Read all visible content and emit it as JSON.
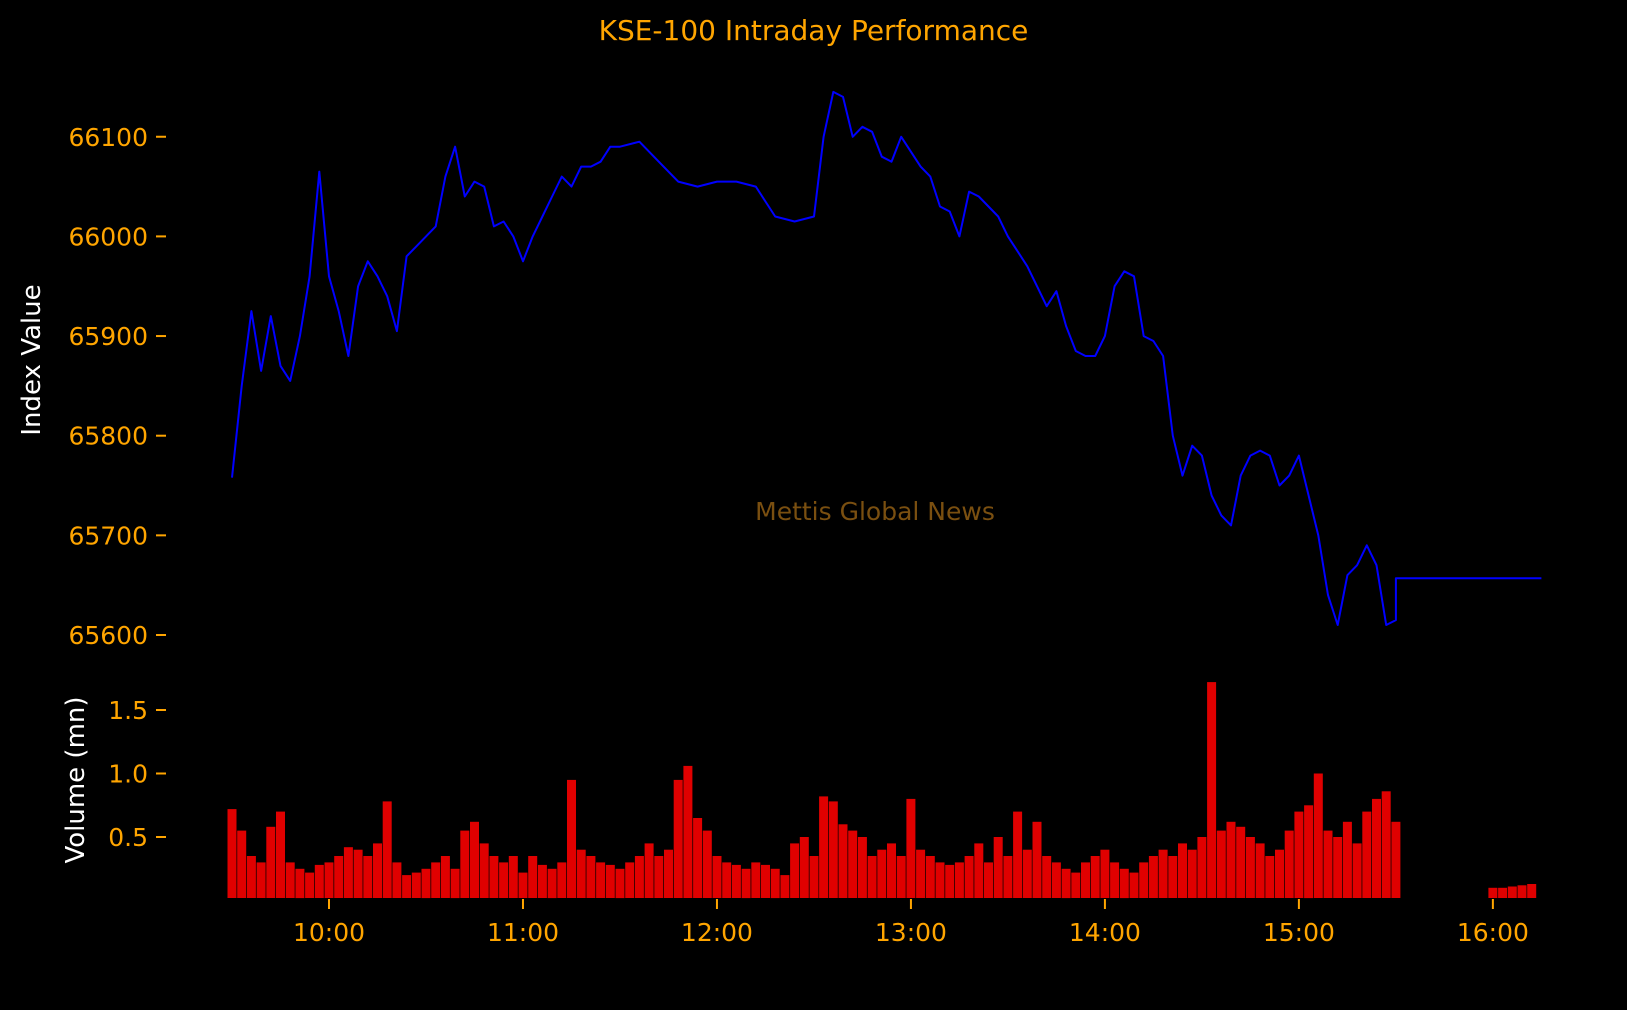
{
  "chart_data": [
    {
      "type": "line",
      "title": "KSE-100 Intraday Performance",
      "watermark": "Mettis Global News",
      "xlabel": "",
      "ylabel": "Index Value",
      "ylim": [
        65580,
        66160
      ],
      "yticks": [
        65600,
        65700,
        65800,
        65900,
        66000,
        66100
      ],
      "xticks": [
        "10:00",
        "11:00",
        "12:00",
        "13:00",
        "14:00",
        "15:00",
        "16:00"
      ],
      "grid": false,
      "line_color": "#0000ff",
      "axis_text_color": "#ffa500",
      "label_color": "#ffffff",
      "background": "#000000",
      "series": [
        {
          "x": [
            "09:30",
            "09:33",
            "09:36",
            "09:39",
            "09:42",
            "09:45",
            "09:48",
            "09:51",
            "09:54",
            "09:57",
            "10:00",
            "10:03",
            "10:06",
            "10:09",
            "10:12",
            "10:15",
            "10:18",
            "10:21",
            "10:24",
            "10:27",
            "10:30",
            "10:33",
            "10:36",
            "10:39",
            "10:42",
            "10:45",
            "10:48",
            "10:51",
            "10:54",
            "10:57",
            "11:00",
            "11:03",
            "11:06",
            "11:09",
            "11:12",
            "11:15",
            "11:18",
            "11:21",
            "11:24",
            "11:27",
            "11:30",
            "11:36",
            "11:42",
            "11:48",
            "11:54",
            "12:00",
            "12:06",
            "12:12",
            "12:18",
            "12:24",
            "12:30",
            "12:33",
            "12:36",
            "12:39",
            "12:42",
            "12:45",
            "12:48",
            "12:51",
            "12:54",
            "12:57",
            "13:00",
            "13:03",
            "13:06",
            "13:09",
            "13:12",
            "13:15",
            "13:18",
            "13:21",
            "13:24",
            "13:27",
            "13:30",
            "13:33",
            "13:36",
            "13:39",
            "13:42",
            "13:45",
            "13:48",
            "13:51",
            "13:54",
            "13:57",
            "14:00",
            "14:03",
            "14:06",
            "14:09",
            "14:12",
            "14:15",
            "14:18",
            "14:21",
            "14:24",
            "14:27",
            "14:30",
            "14:33",
            "14:36",
            "14:39",
            "14:42",
            "14:45",
            "14:48",
            "14:51",
            "14:54",
            "14:57",
            "15:00",
            "15:03",
            "15:06",
            "15:09",
            "15:12",
            "15:15",
            "15:18",
            "15:21",
            "15:24",
            "15:27",
            "15:30",
            "15:30",
            "16:15"
          ],
          "values": [
            65758,
            65850,
            65925,
            65865,
            65920,
            65870,
            65855,
            65900,
            65960,
            66065,
            65960,
            65925,
            65880,
            65950,
            65975,
            65960,
            65940,
            65905,
            65980,
            65990,
            66000,
            66010,
            66060,
            66090,
            66040,
            66055,
            66050,
            66010,
            66015,
            66000,
            65975,
            66000,
            66020,
            66040,
            66060,
            66050,
            66070,
            66070,
            66075,
            66090,
            66090,
            66095,
            66075,
            66055,
            66050,
            66055,
            66055,
            66050,
            66020,
            66015,
            66020,
            66100,
            66145,
            66140,
            66100,
            66110,
            66105,
            66080,
            66075,
            66100,
            66085,
            66070,
            66060,
            66030,
            66025,
            66000,
            66045,
            66040,
            66030,
            66020,
            66000,
            65985,
            65970,
            65950,
            65930,
            65945,
            65910,
            65885,
            65880,
            65880,
            65900,
            65950,
            65965,
            65960,
            65900,
            65895,
            65880,
            65800,
            65760,
            65790,
            65780,
            65740,
            65720,
            65710,
            65760,
            65780,
            65785,
            65780,
            65750,
            65760,
            65780,
            65740,
            65700,
            65640,
            65610,
            65660,
            65670,
            65690,
            65670,
            65610,
            65615,
            65657,
            65657
          ]
        }
      ]
    },
    {
      "type": "bar",
      "title": "",
      "xlabel": "",
      "ylabel": "Volume (mn)",
      "ylim": [
        0.1,
        1.75
      ],
      "yticks": [
        0.5,
        1.0,
        1.5
      ],
      "ytick_labels": [
        "0.5",
        "1.0",
        "1.5"
      ],
      "grid": false,
      "bar_color": "#e00000",
      "series": [
        {
          "x": [
            "09:30",
            "09:33",
            "09:36",
            "09:39",
            "09:42",
            "09:45",
            "09:48",
            "09:51",
            "09:54",
            "09:57",
            "10:00",
            "10:03",
            "10:06",
            "10:09",
            "10:12",
            "10:15",
            "10:18",
            "10:21",
            "10:24",
            "10:27",
            "10:30",
            "10:33",
            "10:36",
            "10:39",
            "10:42",
            "10:45",
            "10:48",
            "10:51",
            "10:54",
            "10:57",
            "11:00",
            "11:03",
            "11:06",
            "11:09",
            "11:12",
            "11:15",
            "11:18",
            "11:21",
            "11:24",
            "11:27",
            "11:30",
            "11:33",
            "11:36",
            "11:39",
            "11:42",
            "11:45",
            "11:48",
            "11:51",
            "11:54",
            "11:57",
            "12:00",
            "12:03",
            "12:06",
            "12:09",
            "12:12",
            "12:15",
            "12:18",
            "12:21",
            "12:24",
            "12:27",
            "12:30",
            "12:33",
            "12:36",
            "12:39",
            "12:42",
            "12:45",
            "12:48",
            "12:51",
            "12:54",
            "12:57",
            "13:00",
            "13:03",
            "13:06",
            "13:09",
            "13:12",
            "13:15",
            "13:18",
            "13:21",
            "13:24",
            "13:27",
            "13:30",
            "13:33",
            "13:36",
            "13:39",
            "13:42",
            "13:45",
            "13:48",
            "13:51",
            "13:54",
            "13:57",
            "14:00",
            "14:03",
            "14:06",
            "14:09",
            "14:12",
            "14:15",
            "14:18",
            "14:21",
            "14:24",
            "14:27",
            "14:30",
            "14:33",
            "14:36",
            "14:39",
            "14:42",
            "14:45",
            "14:48",
            "14:51",
            "14:54",
            "14:57",
            "15:00",
            "15:03",
            "15:06",
            "15:09",
            "15:12",
            "15:15",
            "15:18",
            "15:21",
            "15:24",
            "15:27",
            "15:30",
            "16:00",
            "16:03",
            "16:06",
            "16:09",
            "16:12"
          ],
          "values": [
            0.72,
            0.55,
            0.35,
            0.3,
            0.58,
            0.7,
            0.3,
            0.25,
            0.22,
            0.28,
            0.3,
            0.35,
            0.42,
            0.4,
            0.35,
            0.45,
            0.78,
            0.3,
            0.2,
            0.22,
            0.25,
            0.3,
            0.35,
            0.25,
            0.55,
            0.62,
            0.45,
            0.35,
            0.3,
            0.35,
            0.22,
            0.35,
            0.28,
            0.25,
            0.3,
            0.95,
            0.4,
            0.35,
            0.3,
            0.28,
            0.25,
            0.3,
            0.35,
            0.45,
            0.35,
            0.4,
            0.95,
            1.06,
            0.65,
            0.55,
            0.35,
            0.3,
            0.28,
            0.25,
            0.3,
            0.28,
            0.25,
            0.2,
            0.45,
            0.5,
            0.35,
            0.82,
            0.78,
            0.6,
            0.55,
            0.5,
            0.35,
            0.4,
            0.45,
            0.35,
            0.8,
            0.4,
            0.35,
            0.3,
            0.28,
            0.3,
            0.35,
            0.45,
            0.3,
            0.5,
            0.35,
            0.7,
            0.4,
            0.62,
            0.35,
            0.3,
            0.25,
            0.22,
            0.3,
            0.35,
            0.4,
            0.3,
            0.25,
            0.22,
            0.3,
            0.35,
            0.4,
            0.35,
            0.45,
            0.4,
            0.5,
            1.72,
            0.55,
            0.62,
            0.58,
            0.5,
            0.45,
            0.35,
            0.4,
            0.55,
            0.7,
            0.75,
            1.0,
            0.55,
            0.5,
            0.62,
            0.45,
            0.7,
            0.8,
            0.86,
            0.62,
            0.1,
            0.1,
            0.11,
            0.12,
            0.13
          ]
        }
      ]
    }
  ]
}
